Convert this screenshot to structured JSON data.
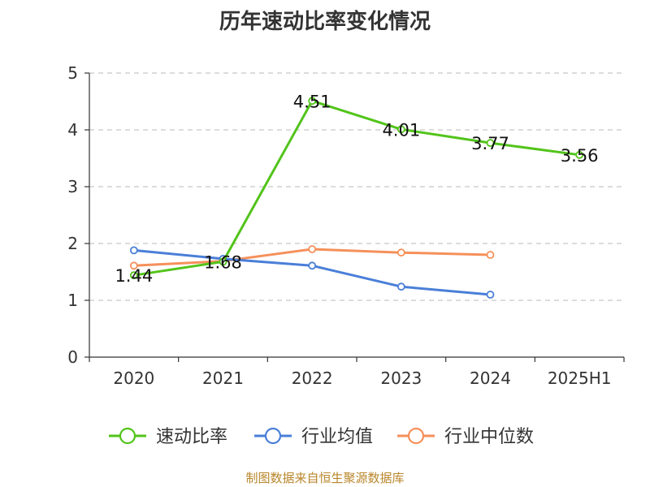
{
  "chart_data": {
    "type": "line",
    "title": "历年速动比率变化情况",
    "categories": [
      "2020",
      "2021",
      "2022",
      "2023",
      "2024",
      "2025H1"
    ],
    "ylim": [
      0,
      5
    ],
    "yticks": [
      0,
      1,
      2,
      3,
      4,
      5
    ],
    "grid": true,
    "legend_position": "bottom",
    "series": [
      {
        "name": "速动比率",
        "color": "#52c41a",
        "values": [
          1.44,
          1.68,
          4.51,
          4.01,
          3.77,
          3.56
        ],
        "labels": [
          "1.44",
          "1.68",
          "4.51",
          "4.01",
          "3.77",
          "3.56"
        ]
      },
      {
        "name": "行业均值",
        "color": "#4a7fd8",
        "values": [
          1.88,
          1.73,
          1.61,
          1.24,
          1.1,
          null
        ]
      },
      {
        "name": "行业中位数",
        "color": "#f5905a",
        "values": [
          1.61,
          1.69,
          1.9,
          1.84,
          1.8,
          null
        ]
      }
    ]
  },
  "footer": {
    "source": "制图数据来自恒生聚源数据库"
  }
}
